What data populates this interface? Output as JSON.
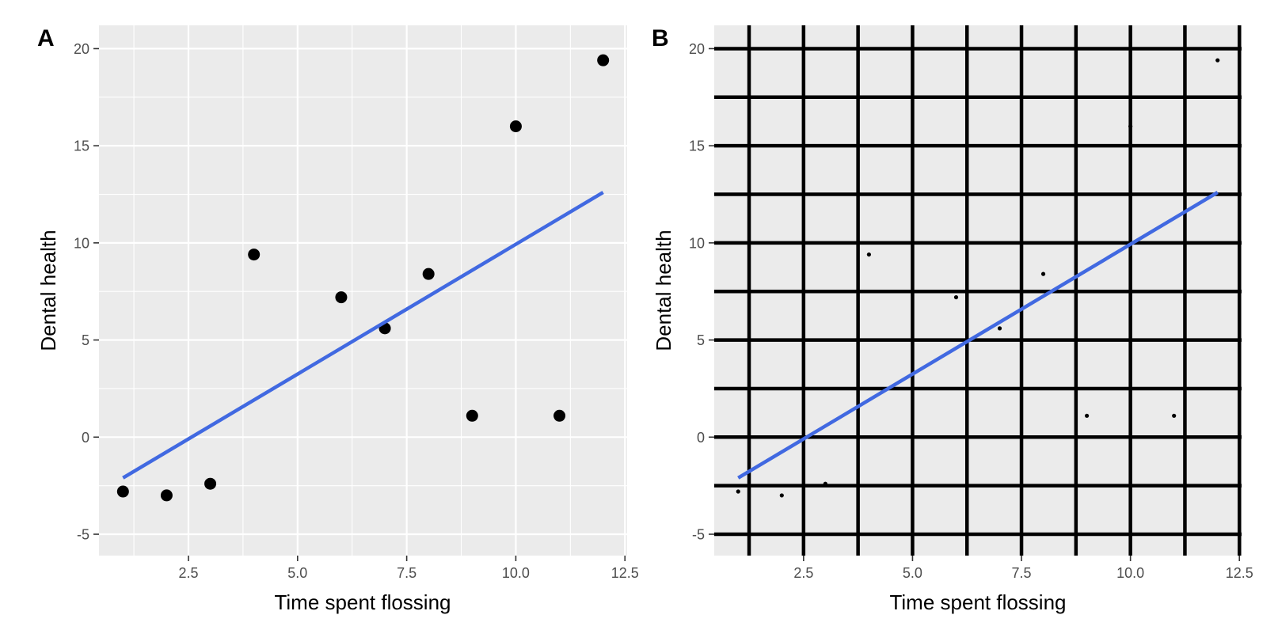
{
  "chart_data": [
    {
      "panel_label": "A",
      "type": "scatter",
      "xlabel": "Time spent flossing",
      "ylabel": "Dental health",
      "xlim": [
        0.45,
        12.55
      ],
      "ylim": [
        -6.1,
        21.2
      ],
      "x_ticks": [
        2.5,
        5.0,
        7.5,
        10.0,
        12.5
      ],
      "x_tick_labels": [
        "2.5",
        "5.0",
        "7.5",
        "10.0",
        "12.5"
      ],
      "y_ticks": [
        -5,
        0,
        5,
        10,
        15,
        20
      ],
      "y_tick_labels": [
        "-5",
        "0",
        "5",
        "10",
        "15",
        "20"
      ],
      "x_minor_ticks": [
        1.25,
        3.75,
        6.25,
        8.75,
        11.25
      ],
      "y_minor_ticks": [
        -2.5,
        2.5,
        7.5,
        12.5,
        17.5
      ],
      "grid": true,
      "grid_style": "white",
      "point_size": "large",
      "points": {
        "x": [
          1,
          2,
          3,
          4,
          6,
          7,
          8,
          9,
          10,
          11,
          12
        ],
        "y": [
          -2.8,
          -3.0,
          -2.4,
          9.4,
          7.2,
          5.6,
          8.4,
          1.1,
          16.0,
          1.1,
          19.4
        ]
      },
      "fit_line": {
        "x": [
          1,
          12
        ],
        "y": [
          -2.1,
          12.6
        ],
        "color": "#4169E1"
      }
    },
    {
      "panel_label": "B",
      "type": "scatter",
      "xlabel": "Time spent flossing",
      "ylabel": "Dental health",
      "xlim": [
        0.45,
        12.55
      ],
      "ylim": [
        -6.1,
        21.2
      ],
      "x_ticks": [
        2.5,
        5.0,
        7.5,
        10.0,
        12.5
      ],
      "x_tick_labels": [
        "2.5",
        "5.0",
        "7.5",
        "10.0",
        "12.5"
      ],
      "y_ticks": [
        -5,
        0,
        5,
        10,
        15,
        20
      ],
      "y_tick_labels": [
        "-5",
        "0",
        "5",
        "10",
        "15",
        "20"
      ],
      "x_minor_ticks": [
        1.25,
        3.75,
        6.25,
        8.75,
        11.25
      ],
      "y_minor_ticks": [
        -2.5,
        2.5,
        7.5,
        12.5,
        17.5
      ],
      "grid": true,
      "grid_style": "heavy-black",
      "point_size": "small",
      "points": {
        "x": [
          1,
          2,
          3,
          4,
          6,
          7,
          8,
          9,
          10,
          11,
          12
        ],
        "y": [
          -2.8,
          -3.0,
          -2.4,
          9.4,
          7.2,
          5.6,
          8.4,
          1.1,
          16.0,
          1.1,
          19.4
        ]
      },
      "fit_line": {
        "x": [
          1,
          12
        ],
        "y": [
          -2.1,
          12.6
        ],
        "color": "#4169E1"
      }
    }
  ]
}
